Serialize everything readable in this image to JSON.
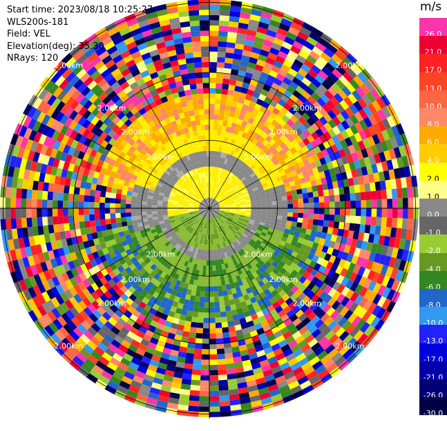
{
  "header": {
    "start_time": "Start time: 2023/08/18 10:25:27",
    "instrument": "WLS200s-181",
    "field": "Field: VEL",
    "elevation": "Elevation(deg): 35.30",
    "nrays": "NRays: 120"
  },
  "colorbar": {
    "unit": "m/s",
    "levels": [
      "26.0",
      "21.0",
      "17.0",
      "13.0",
      "10.0",
      "8.0",
      "6.0",
      "4.0",
      "2.0",
      "1.0",
      "0.0",
      "-1.0",
      "-2.0",
      "-4.0",
      "-6.0",
      "-8.0",
      "-10.0",
      "-13.0",
      "-17.0",
      "-21.0",
      "-26.0",
      "-30.0"
    ],
    "colors": [
      "#ff33aa",
      "#ee0033",
      "#ff2222",
      "#ff4422",
      "#ff6644",
      "#ff8866",
      "#ffaa00",
      "#ffcc00",
      "#ffff00",
      "#ffff88",
      "#888888",
      "#666666",
      "#99cc33",
      "#669922",
      "#338822",
      "#2266cc",
      "#3399ee",
      "#2222ff",
      "#0000dd",
      "#0000aa",
      "#000077",
      "#000044"
    ]
  },
  "range_labels": [
    "2.00km",
    "2.00km",
    "2.00km",
    "2.00km",
    "2.00km",
    "2.00km",
    "2.00km",
    "2.00km",
    "2.00km",
    "2.00km",
    "2.00km",
    "2.00km",
    "2.00km",
    "2.00km",
    "2.00km",
    "2.00km"
  ]
}
